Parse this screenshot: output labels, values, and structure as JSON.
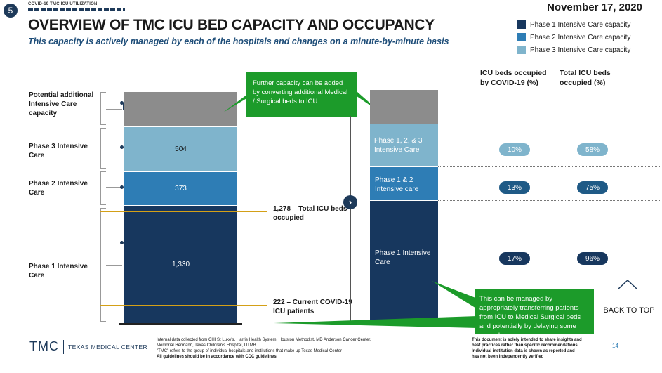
{
  "header": {
    "slide_number": "5",
    "section_tag": "COVID-19 TMC ICU UTILIZATION",
    "date": "November 17, 2020",
    "title": "OVERVIEW OF TMC ICU BED CAPACITY AND OCCUPANCY",
    "subtitle": "This capacity is actively managed by each of the hospitals and changes on a minute-by-minute basis"
  },
  "legend": [
    {
      "label": "Phase 1 Intensive Care capacity",
      "color": "#17375e"
    },
    {
      "label": "Phase 2 Intensive Care capacity",
      "color": "#2e7db5"
    },
    {
      "label": "Phase 3 Intensive Care capacity",
      "color": "#7fb4cc"
    }
  ],
  "colors": {
    "potential": "#8c8c8c",
    "phase1": "#17375e",
    "phase2": "#2e7db5",
    "phase3": "#7fb4cc",
    "note_green": "#1c9b2a",
    "gold": "#d4a017"
  },
  "row_labels": {
    "potential": "Potential additional Intensive Care capacity",
    "phase3": "Phase 3 Intensive Care",
    "phase2": "Phase 2 Intensive Care",
    "phase1": "Phase 1 Intensive Care"
  },
  "left_bar": {
    "phase3_value": "504",
    "phase2_value": "373",
    "phase1_value": "1,330"
  },
  "callouts": {
    "total": "1,278 – Total ICU beds occupied",
    "covid": "222 – Current COVID-19 ICU patients"
  },
  "top_note": "Further capacity can be added by converting additional Medical / Surgical beds to ICU",
  "right_bar": {
    "phase123": "Phase 1, 2, & 3 Intensive Care",
    "phase12": "Phase 1 & 2 Intensive care",
    "phase1": "Phase 1 Intensive Care"
  },
  "table": {
    "col_covid": "ICU beds occupied by COVID-19 (%)",
    "col_total": "Total ICU beds occupied (%)",
    "rows": [
      {
        "covid": "10%",
        "total": "58%"
      },
      {
        "covid": "13%",
        "total": "75%"
      },
      {
        "covid": "17%",
        "total": "96%"
      }
    ]
  },
  "bottom_note": "This can be managed by appropriately transferring patients from ICU to Medical Surgical beds and potentially by delaying some procedures",
  "back_to_top": "BACK TO TOP",
  "footer": {
    "logo_tmc": "TMC",
    "logo_name": "TEXAS MEDICAL CENTER",
    "source_lines": [
      "Internal data collected from CHI St Luke's, Harris Health System, Houston Methodist, MD Anderson Cancer Center,",
      "Memorial Hermann, Texas Children's Hospital, UTMB",
      "\"TMC\" refers to the group of individual hospitals and institutions that make up Texas Medical Center",
      "All guidelines should be in accordance with CDC guidelines"
    ],
    "disclaimer_lines": [
      "This document is solely intended to share insights and",
      "best practices rather than specific recommendations.",
      "Individual institution data is shown as reported and",
      "has not been independently verified"
    ],
    "page_number": "14"
  }
}
